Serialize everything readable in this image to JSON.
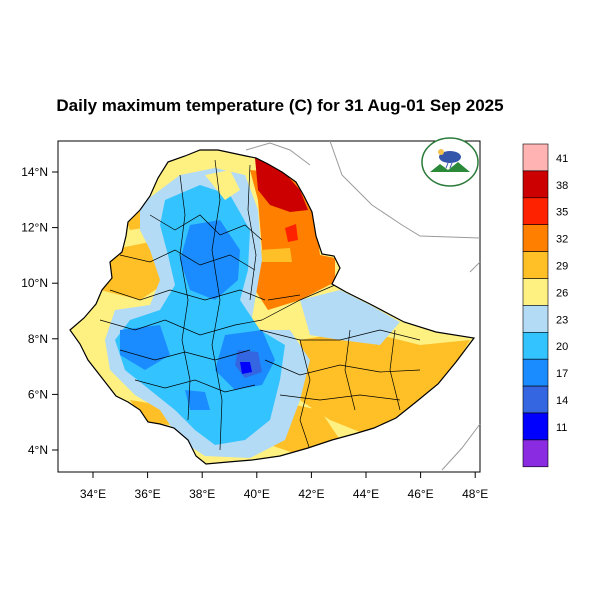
{
  "title": "Daily maximum temperature (C) for 31 Aug-01 Sep 2025",
  "map": {
    "x_ticks": [
      "34°E",
      "36°E",
      "38°E",
      "40°E",
      "42°E",
      "44°E",
      "46°E",
      "48°E"
    ],
    "y_ticks": [
      "14°N",
      "12°N",
      "10°N",
      "8°N",
      "6°N",
      "4°N"
    ],
    "x_range": [
      33,
      48.2
    ],
    "y_range": [
      3.2,
      15
    ],
    "logo_icon": "ethiopian-meteorology-institute-logo"
  },
  "colorbar": {
    "labels": [
      "41",
      "38",
      "35",
      "32",
      "29",
      "26",
      "23",
      "20",
      "17",
      "14",
      "11"
    ],
    "colors": [
      "#ffb3b3",
      "#cc0000",
      "#ff2200",
      "#ff8000",
      "#ffbf26",
      "#fff082",
      "#b3dbf5",
      "#33c4ff",
      "#1a8cff",
      "#3366e0",
      "#0000ff",
      "#8a2be2"
    ]
  },
  "colors": {
    "outline": "#000000",
    "neighbor_border": "#999999"
  }
}
